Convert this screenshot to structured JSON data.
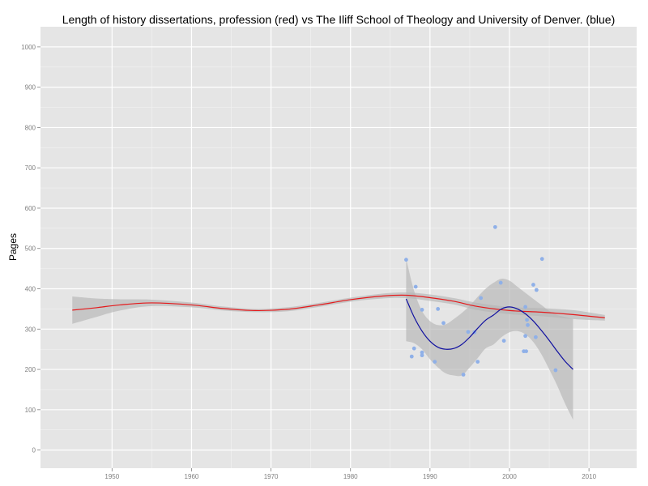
{
  "chart_data": {
    "type": "scatter",
    "title": "Length of history dissertations, profession (red) vs The Iliff School of Theology and University of Denver. (blue)",
    "xlabel": "",
    "ylabel": "Pages",
    "xlim": [
      1941,
      2016
    ],
    "ylim": [
      -45,
      1050
    ],
    "x_ticks": [
      1950,
      1960,
      1970,
      1980,
      1990,
      2000,
      2010
    ],
    "y_ticks": [
      0,
      100,
      200,
      300,
      400,
      500,
      600,
      700,
      800,
      900,
      1000
    ],
    "grid": true,
    "legend": "none",
    "colors": {
      "panel": "#e5e5e5",
      "grid_major": "#ffffff",
      "grid_minor": "#f2f2f2",
      "ribbon": "#b5b5b5",
      "profession": "#e41a1c",
      "iliff_du": "#1010a0",
      "points": "#8fb0e8"
    },
    "series": [
      {
        "kind": "smooth",
        "color_key": "profession",
        "x": [
          1945,
          1948,
          1951,
          1955,
          1960,
          1964,
          1968,
          1972,
          1976,
          1980,
          1984,
          1987,
          1990,
          1993,
          1996,
          2000,
          2004,
          2008,
          2012
        ],
        "y": [
          347,
          353,
          360,
          365,
          360,
          351,
          346,
          349,
          360,
          373,
          382,
          384,
          378,
          369,
          356,
          346,
          342,
          336,
          328
        ],
        "upper": [
          381,
          376,
          374,
          373,
          366,
          356,
          350,
          354,
          365,
          378,
          388,
          391,
          386,
          377,
          365,
          355,
          352,
          347,
          335
        ],
        "lower": [
          313,
          330,
          346,
          357,
          354,
          346,
          342,
          344,
          355,
          368,
          376,
          377,
          370,
          361,
          347,
          337,
          332,
          325,
          321
        ]
      },
      {
        "kind": "smooth",
        "color_key": "iliff_du",
        "x": [
          1987,
          1988,
          1989,
          1990,
          1991,
          1992,
          1993,
          1994,
          1995,
          1996,
          1997,
          1998,
          1999,
          2000,
          2001,
          2002,
          2003,
          2004,
          2005,
          2006,
          2007,
          2008
        ],
        "y": [
          375,
          330,
          295,
          270,
          255,
          250,
          252,
          262,
          280,
          302,
          322,
          335,
          350,
          355,
          350,
          338,
          320,
          297,
          272,
          245,
          220,
          200
        ],
        "upper": [
          475,
          395,
          345,
          320,
          310,
          312,
          325,
          340,
          358,
          380,
          400,
          415,
          425,
          420,
          405,
          390,
          375,
          360,
          345,
          335,
          330,
          325
        ],
        "lower": [
          270,
          265,
          250,
          225,
          205,
          190,
          185,
          185,
          205,
          228,
          252,
          262,
          280,
          292,
          295,
          287,
          268,
          238,
          200,
          160,
          115,
          75
        ]
      },
      {
        "kind": "points",
        "color_key": "points",
        "points": [
          [
            1987.0,
            472
          ],
          [
            1987.7,
            232
          ],
          [
            1988.0,
            252
          ],
          [
            1988.2,
            405
          ],
          [
            1989.0,
            348
          ],
          [
            1989.0,
            242
          ],
          [
            1989.0,
            235
          ],
          [
            1990.6,
            219
          ],
          [
            1991.0,
            350
          ],
          [
            1991.7,
            315
          ],
          [
            1994.2,
            187
          ],
          [
            1994.8,
            293
          ],
          [
            1995.6,
            292
          ],
          [
            1996.0,
            219
          ],
          [
            1996.4,
            377
          ],
          [
            1998.2,
            553
          ],
          [
            1998.9,
            415
          ],
          [
            1999.3,
            271
          ],
          [
            2001.8,
            245
          ],
          [
            2002.0,
            355
          ],
          [
            2002.0,
            283
          ],
          [
            2002.1,
            245
          ],
          [
            2002.2,
            323
          ],
          [
            2002.3,
            310
          ],
          [
            2003.0,
            410
          ],
          [
            2003.3,
            280
          ],
          [
            2003.4,
            397
          ],
          [
            2004.1,
            474
          ],
          [
            2005.8,
            198
          ]
        ]
      }
    ]
  }
}
